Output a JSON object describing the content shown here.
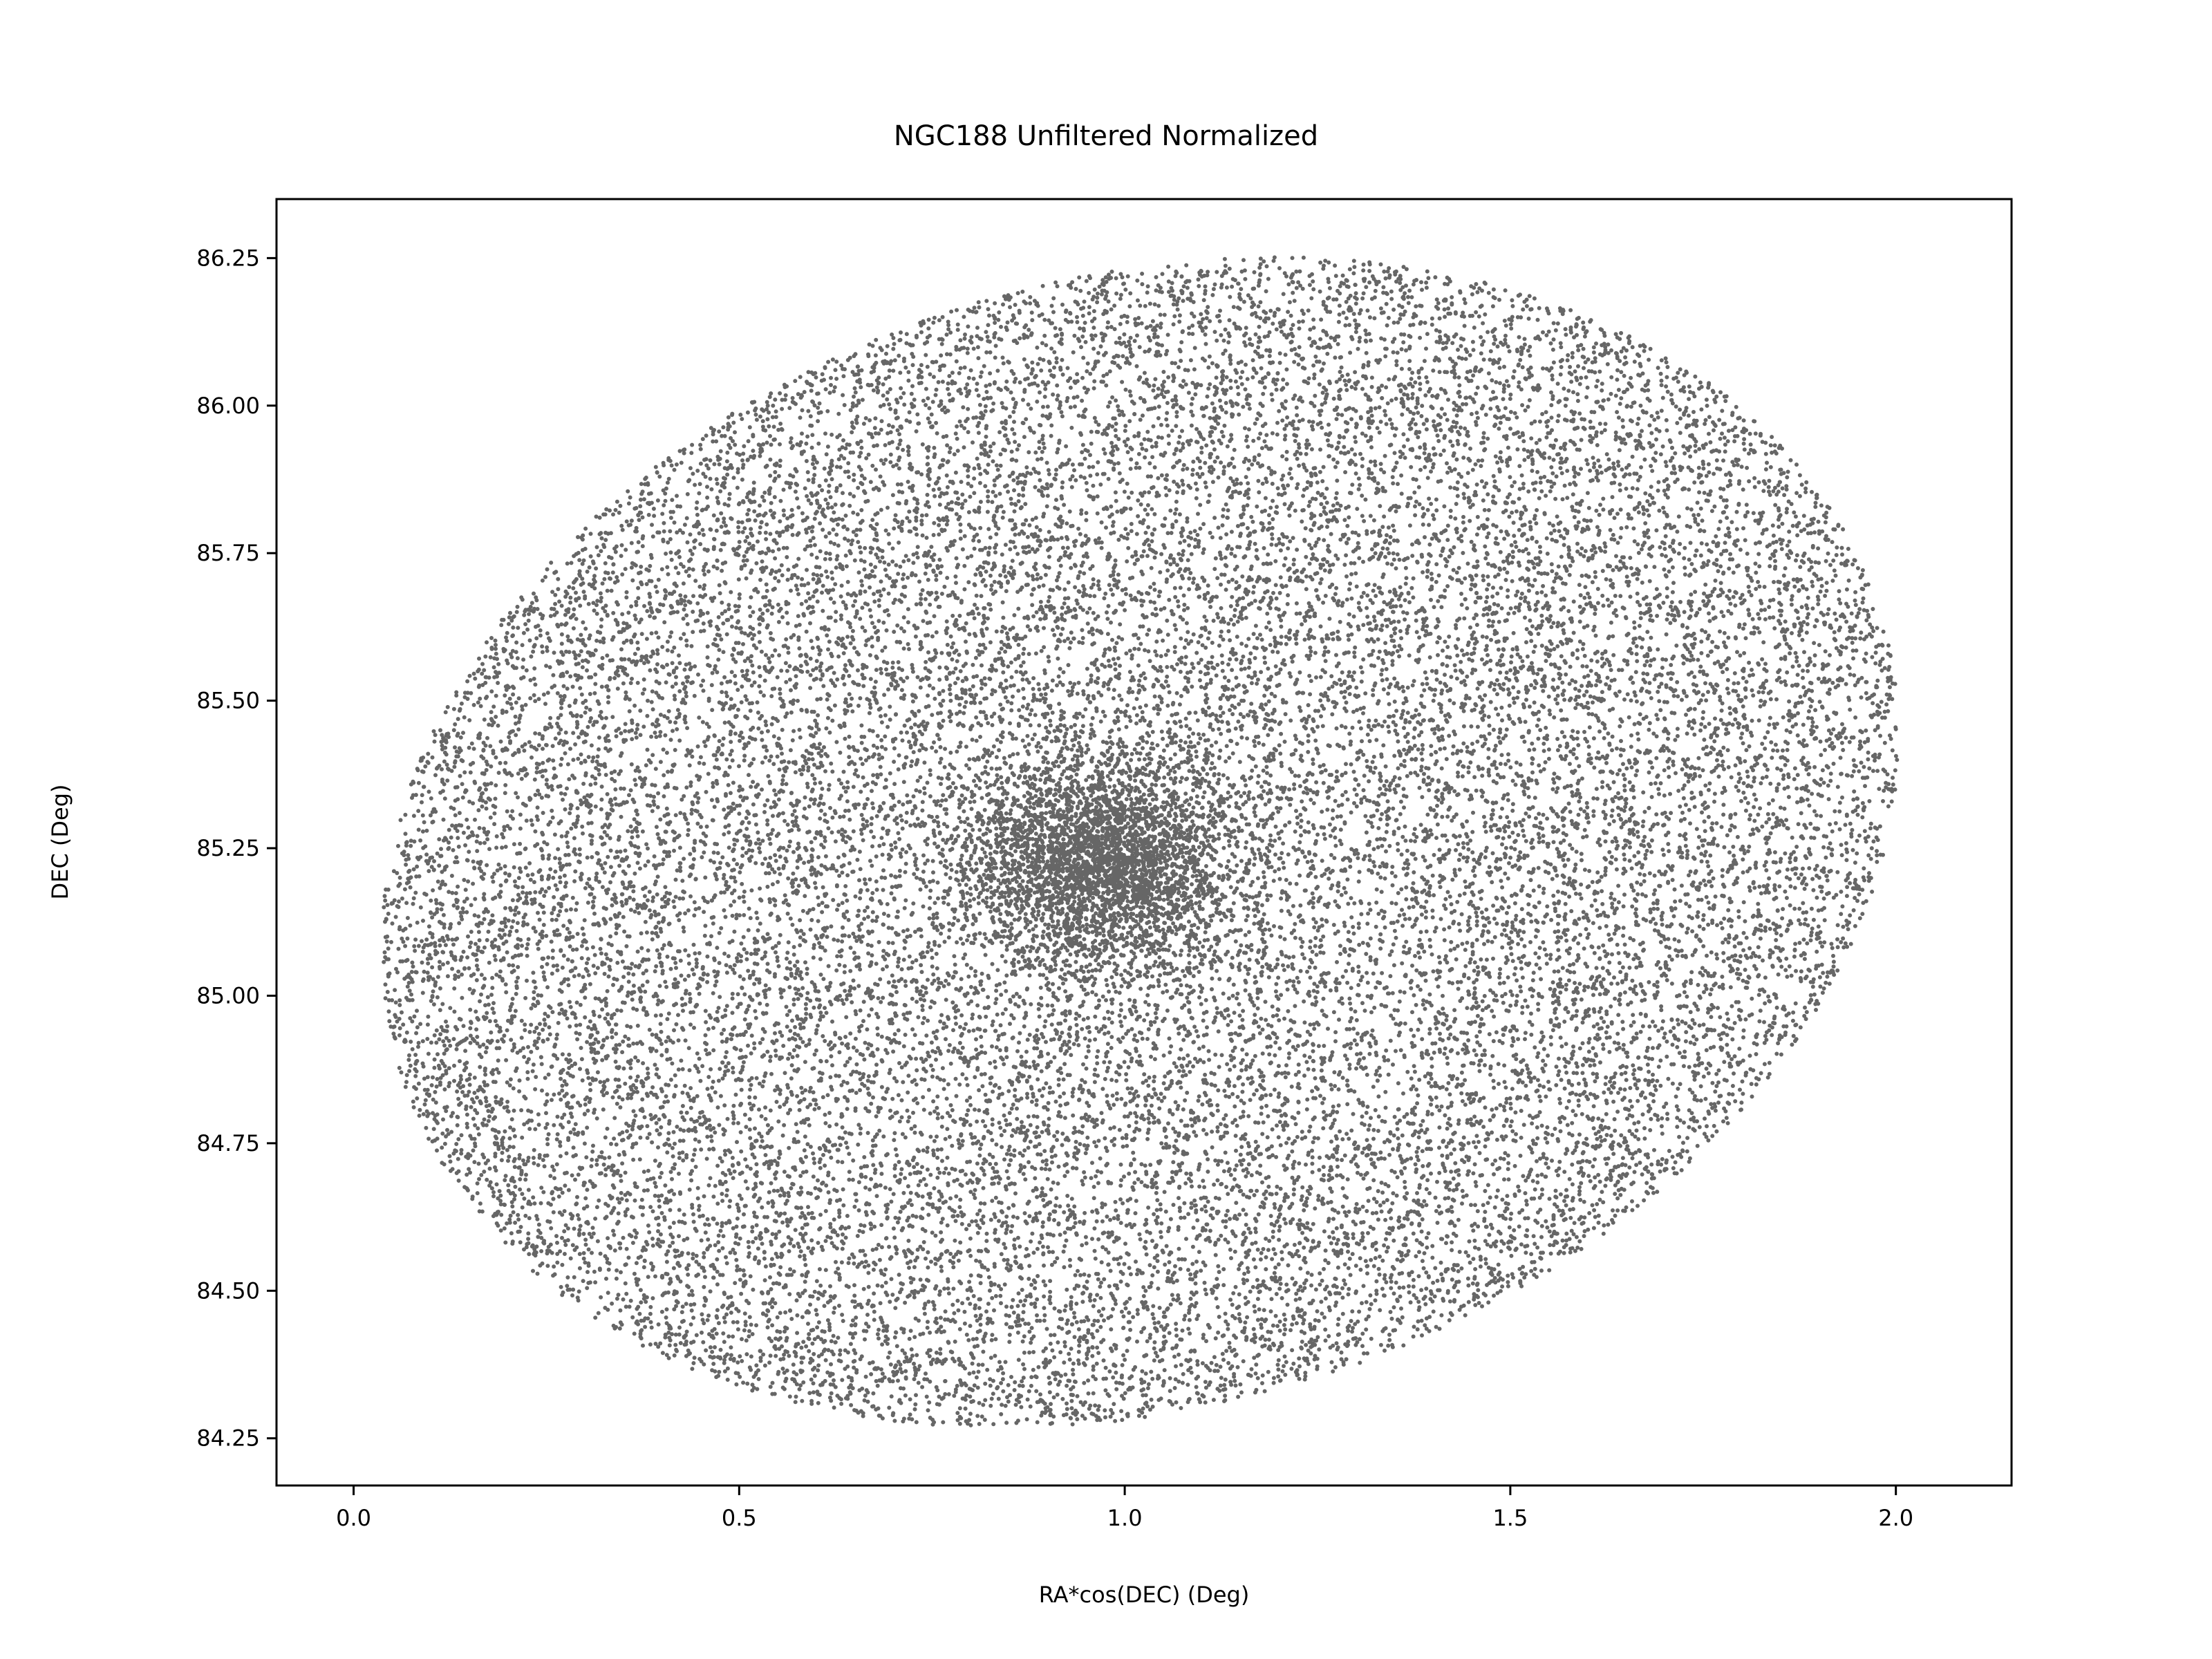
{
  "chart_data": {
    "type": "scatter",
    "title": "NGC188 Unfiltered Normalized",
    "xlabel": "RA*cos(DEC) (Deg)",
    "ylabel": "DEC (Deg)",
    "xlim": [
      -0.1,
      2.15
    ],
    "ylim": [
      84.17,
      86.35
    ],
    "xticks": [
      0.0,
      0.5,
      1.0,
      1.5,
      2.0
    ],
    "xtick_labels": [
      "0.0",
      "0.5",
      "1.0",
      "1.5",
      "2.0"
    ],
    "yticks": [
      84.25,
      84.5,
      84.75,
      85.0,
      85.25,
      85.5,
      85.75,
      86.0,
      86.25
    ],
    "ytick_labels": [
      "84.25",
      "84.50",
      "84.75",
      "85.00",
      "85.25",
      "85.50",
      "85.75",
      "86.00",
      "86.25"
    ],
    "grid": false,
    "legend": "none",
    "marker_color": "#666666",
    "series": [
      {
        "distribution": "elliptical field, approximately uniform, with a dense concentration near the center",
        "field_center": [
          1.02,
          85.26
        ],
        "field_extent_x": [
          0.0,
          2.05
        ],
        "field_extent_y": [
          84.26,
          86.25
        ],
        "cluster_center": [
          0.97,
          85.23
        ],
        "approx_point_count": 30000
      }
    ]
  }
}
